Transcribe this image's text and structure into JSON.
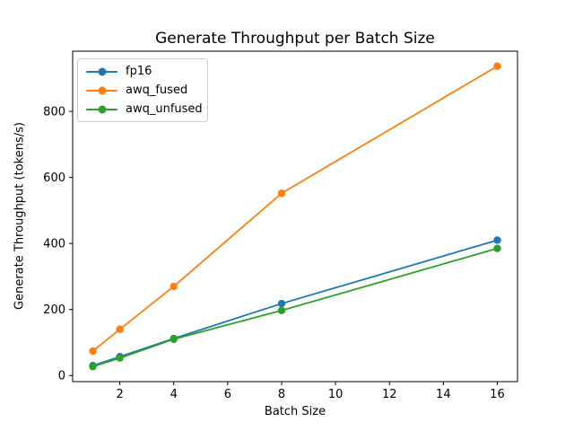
{
  "chart_data": {
    "type": "line",
    "title": "Generate Throughput per Batch Size",
    "xlabel": "Batch Size",
    "ylabel": "Generate Throughput (tokens/s)",
    "x": [
      1,
      2,
      4,
      8,
      16
    ],
    "series": [
      {
        "name": "fp16",
        "color": "#1f77b4",
        "values": [
          30,
          57,
          112,
          218,
          410
        ]
      },
      {
        "name": "awq_fused",
        "color": "#ff7f0e",
        "values": [
          74,
          140,
          270,
          552,
          937
        ]
      },
      {
        "name": "awq_unfused",
        "color": "#2ca02c",
        "values": [
          27,
          53,
          110,
          197,
          385
        ]
      }
    ],
    "xlim": [
      0.25,
      16.75
    ],
    "ylim": [
      -18.5,
      982.5
    ],
    "xticks": [
      2,
      4,
      6,
      8,
      10,
      12,
      14,
      16
    ],
    "yticks": [
      0,
      200,
      400,
      600,
      800
    ],
    "marker": "circle",
    "grid": false,
    "legend_position": "upper left",
    "frame_color": "#000000",
    "background_color": "#ffffff"
  }
}
